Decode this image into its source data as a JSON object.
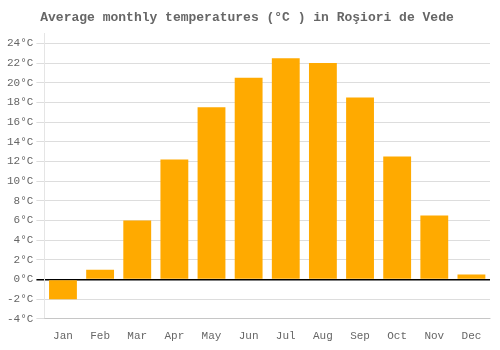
{
  "chart_data": {
    "type": "bar",
    "title": "Average monthly temperatures (°C ) in Roşiori de Vede",
    "categories": [
      "Jan",
      "Feb",
      "Mar",
      "Apr",
      "May",
      "Jun",
      "Jul",
      "Aug",
      "Sep",
      "Oct",
      "Nov",
      "Dec"
    ],
    "values": [
      -2.0,
      1.0,
      6.0,
      12.2,
      17.5,
      20.5,
      22.5,
      22.0,
      18.5,
      12.5,
      6.5,
      0.5
    ],
    "color": "#FFAA00",
    "ylim": [
      -4,
      25
    ],
    "yticks": [
      {
        "value": -4,
        "label": "-4°C"
      },
      {
        "value": -2,
        "label": "-2°C"
      },
      {
        "value": 0,
        "label": "0°C"
      },
      {
        "value": 2,
        "label": "2°C"
      },
      {
        "value": 4,
        "label": "4°C"
      },
      {
        "value": 6,
        "label": "6°C"
      },
      {
        "value": 8,
        "label": "8°C"
      },
      {
        "value": 10,
        "label": "10°C"
      },
      {
        "value": 12,
        "label": "12°C"
      },
      {
        "value": 14,
        "label": "14°C"
      },
      {
        "value": 16,
        "label": "16°C"
      },
      {
        "value": 18,
        "label": "18°C"
      },
      {
        "value": 20,
        "label": "20°C"
      },
      {
        "value": 22,
        "label": "22°C"
      },
      {
        "value": 24,
        "label": "24°C"
      }
    ],
    "grid": true
  }
}
